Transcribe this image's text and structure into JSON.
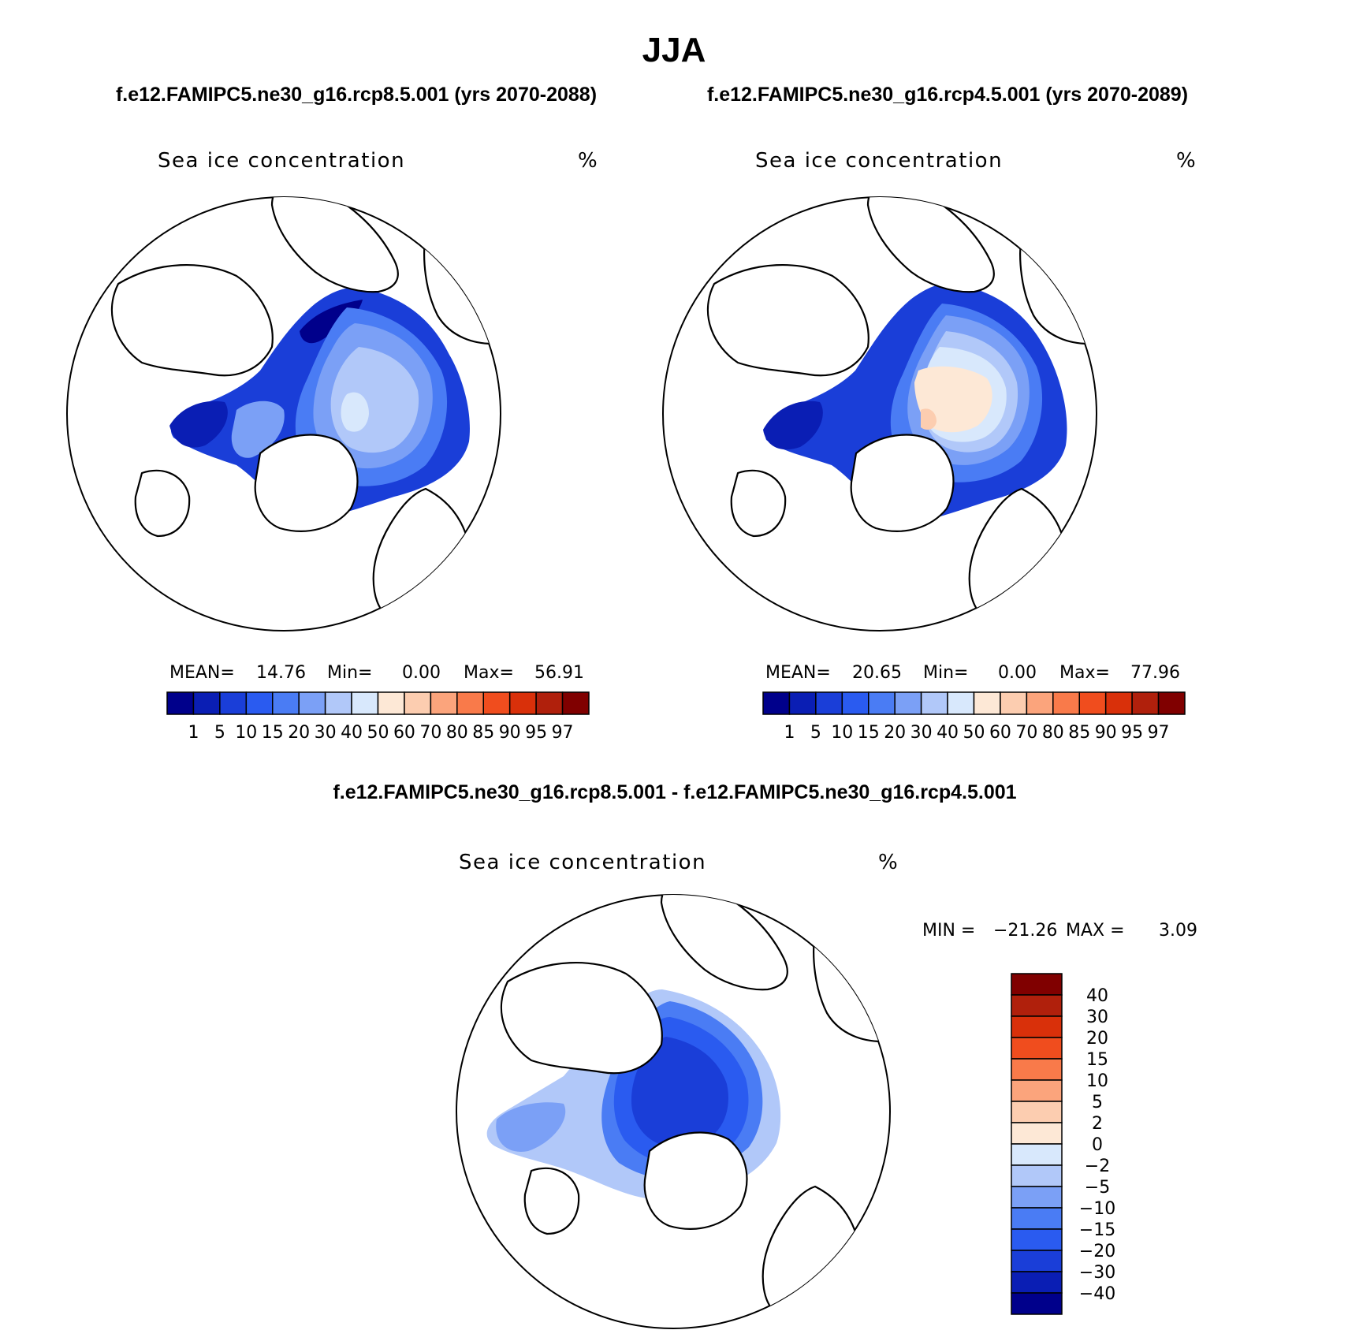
{
  "figure": {
    "season": "JJA",
    "subtitle_left": "f.e12.FAMIPC5.ne30_g16.rcp8.5.001 (yrs 2070-2088)",
    "subtitle_right": "f.e12.FAMIPC5.ne30_g16.rcp4.5.001 (yrs 2070-2089)",
    "diff_title": "f.e12.FAMIPC5.ne30_g16.rcp8.5.001 - f.e12.FAMIPC5.ne30_g16.rcp4.5.001"
  },
  "panels": [
    {
      "id": "rcp85",
      "variable": "Sea ice concentration",
      "units": "%",
      "stats": {
        "mean_label": "MEAN=",
        "mean": "14.76",
        "min_label": "Min=",
        "min": "0.00",
        "max_label": "Max=",
        "max": "56.91"
      }
    },
    {
      "id": "rcp45",
      "variable": "Sea ice concentration",
      "units": "%",
      "stats": {
        "mean_label": "MEAN=",
        "mean": "20.65",
        "min_label": "Min=",
        "min": "0.00",
        "max_label": "Max=",
        "max": "77.96"
      }
    },
    {
      "id": "diff",
      "variable": "Sea ice concentration",
      "units": "%",
      "stats": {
        "min_label": "MIN =",
        "min": "−21.26",
        "max_label": "MAX =",
        "max": "3.09"
      }
    }
  ],
  "chart_data": {
    "type": "heatmap",
    "projection": "north polar stereographic",
    "field": "Sea ice concentration",
    "units": "%",
    "colorbar_levels": [
      "1",
      "5",
      "10",
      "15",
      "20",
      "30",
      "40",
      "50",
      "60",
      "70",
      "80",
      "85",
      "90",
      "95",
      "97"
    ],
    "colorbar_colors": [
      "#00008b",
      "#0a1eb4",
      "#1a3ed8",
      "#2a5bf0",
      "#4a7cf4",
      "#7ba0f6",
      "#b1c8f9",
      "#d8e8fc",
      "#fde8d6",
      "#fccdb0",
      "#fba47c",
      "#f97a4a",
      "#f04d1e",
      "#d9300a",
      "#b0200c",
      "#800000"
    ],
    "diff_levels": [
      "40",
      "30",
      "20",
      "15",
      "10",
      "5",
      "2",
      "0",
      "−2",
      "−5",
      "−10",
      "−15",
      "−20",
      "−30",
      "−40"
    ],
    "diff_colors": [
      "#800000",
      "#b0200c",
      "#d9300a",
      "#f04d1e",
      "#f97a4a",
      "#fba47c",
      "#fccdb0",
      "#fde8d6",
      "#d8e8fc",
      "#b1c8f9",
      "#7ba0f6",
      "#4a7cf4",
      "#2a5bf0",
      "#1a3ed8",
      "#0a1eb4",
      "#00008b"
    ],
    "panel_stats": [
      {
        "panel": "rcp8.5 (yrs 2070-2088)",
        "mean": 14.76,
        "min": 0.0,
        "max": 56.91
      },
      {
        "panel": "rcp4.5 (yrs 2070-2089)",
        "mean": 20.65,
        "min": 0.0,
        "max": 77.96
      },
      {
        "panel": "rcp8.5 - rcp4.5",
        "min": -21.26,
        "max": 3.09
      }
    ]
  }
}
